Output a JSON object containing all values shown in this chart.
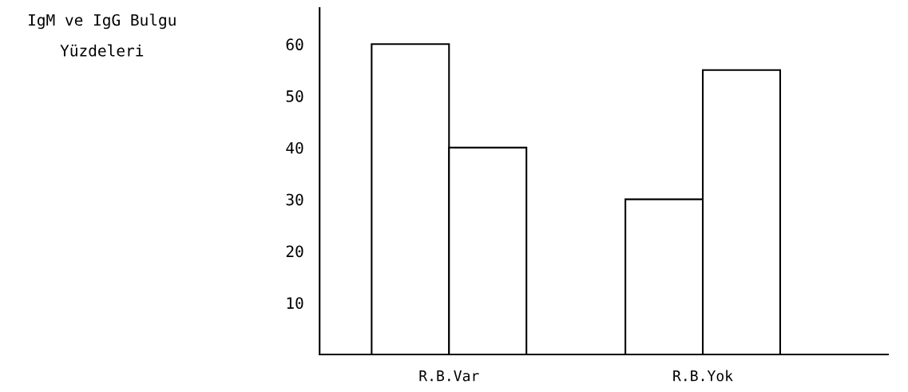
{
  "chart_data": {
    "type": "bar",
    "annotations": [
      "IgM ve IgG Bulgu\nYüzdeleri"
    ],
    "categories": [
      "R.B.Var",
      "R.B.Yok"
    ],
    "series": [
      {
        "color": "#ffffff",
        "values": [
          60,
          30
        ]
      },
      {
        "color": "#ffffff",
        "values": [
          40,
          55
        ]
      }
    ],
    "ylim": [
      0,
      67
    ],
    "yticks": [
      10,
      20,
      30,
      40,
      50,
      60
    ],
    "grid": false,
    "legend": false
  }
}
